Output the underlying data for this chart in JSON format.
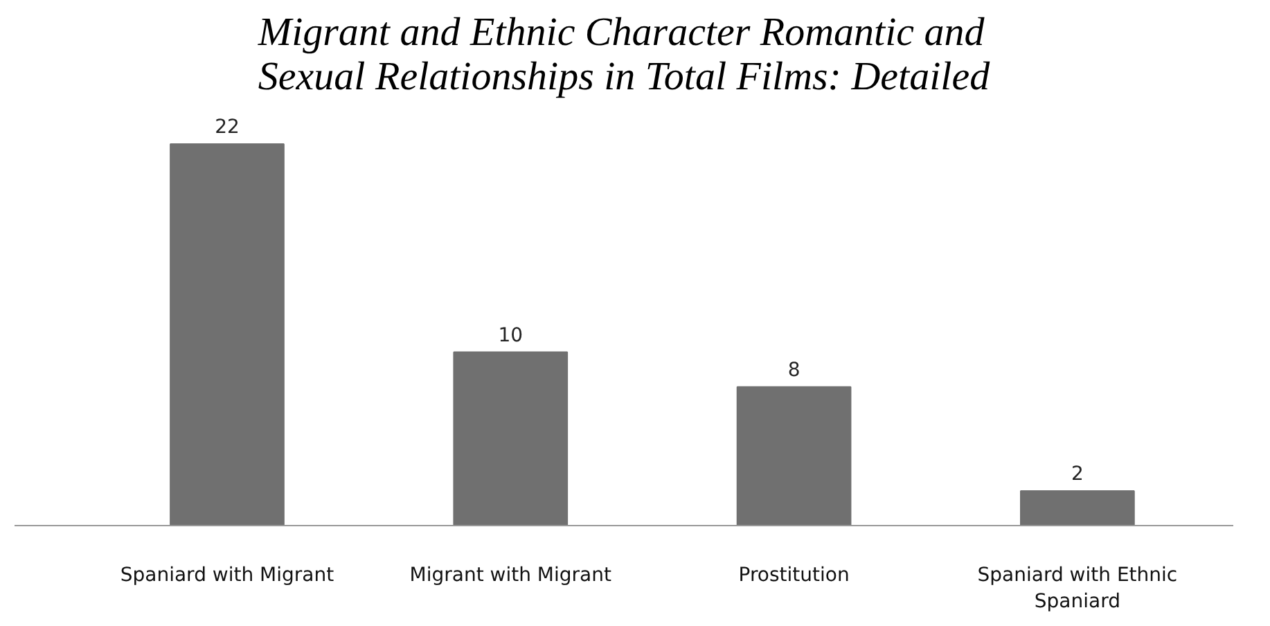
{
  "chart_data": {
    "type": "bar",
    "title": "Migrant and Ethnic Character Romantic and Sexual Relationships in Total Films: Detailed",
    "categories": [
      "Spaniard with Migrant",
      "Migrant with Migrant",
      "Prostitution",
      "Spaniard with Ethnic Spaniard"
    ],
    "values": [
      22,
      10,
      8,
      2
    ],
    "color": "#707070",
    "data_labels": true,
    "tick_labels": "x"
  }
}
